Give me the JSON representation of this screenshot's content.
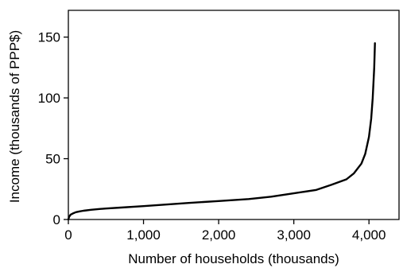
{
  "chart_data": {
    "type": "line",
    "xlabel": "Number of households (thousands)",
    "ylabel": "Income (thousands of PPP$)",
    "xlim": [
      0,
      4400
    ],
    "ylim": [
      0,
      172
    ],
    "xticks": [
      0,
      1000,
      2000,
      3000,
      4000
    ],
    "xtick_labels": [
      "0",
      "1,000",
      "2,000",
      "3,000",
      "4,000"
    ],
    "yticks": [
      0,
      50,
      100,
      150
    ],
    "ytick_labels": [
      "0",
      "50",
      "100",
      "150"
    ],
    "grid": false,
    "legend": "none",
    "series": [
      {
        "color": "#000000",
        "x": [
          0,
          10,
          30,
          60,
          100,
          150,
          200,
          300,
          400,
          500,
          700,
          1000,
          1300,
          1600,
          2000,
          2400,
          2700,
          3000,
          3300,
          3500,
          3700,
          3800,
          3900,
          3950,
          4000,
          4030,
          4050,
          4070,
          4080
        ],
        "y": [
          0,
          2,
          4,
          5,
          6,
          6.7,
          7.2,
          8,
          8.6,
          9,
          9.8,
          11,
          12.3,
          13.6,
          15.2,
          16.8,
          18.8,
          21.5,
          24.3,
          28.5,
          33,
          38,
          46,
          54,
          68,
          83,
          100,
          125,
          145
        ]
      }
    ]
  }
}
